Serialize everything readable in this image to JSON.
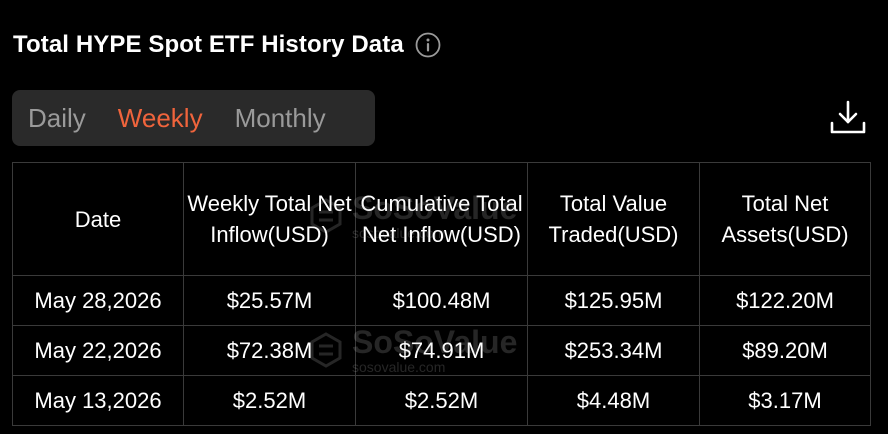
{
  "title": "Total HYPE Spot ETF History Data",
  "tabs": [
    {
      "label": "Daily",
      "active": false
    },
    {
      "label": "Weekly",
      "active": true
    },
    {
      "label": "Monthly",
      "active": false
    }
  ],
  "accent_color": "#f0643c",
  "positive_color": "#4caf6a",
  "table": {
    "headers": [
      "Date",
      "Weekly Total Net Inflow(USD)",
      "Cumulative Total Net Inflow(USD)",
      "Total Value Traded(USD)",
      "Total Net Assets(USD)"
    ],
    "rows": [
      [
        "May 28,2026",
        "$25.57M",
        "$100.48M",
        "$125.95M",
        "$122.20M"
      ],
      [
        "May 22,2026",
        "$72.38M",
        "$74.91M",
        "$253.34M",
        "$89.20M"
      ],
      [
        "May 13,2026",
        "$2.52M",
        "$2.52M",
        "$4.48M",
        "$3.17M"
      ]
    ]
  },
  "watermark": {
    "brand": "SoSoValue",
    "url": "sosovalue.com"
  },
  "icons": {
    "info": "info-icon",
    "download": "download-icon"
  }
}
